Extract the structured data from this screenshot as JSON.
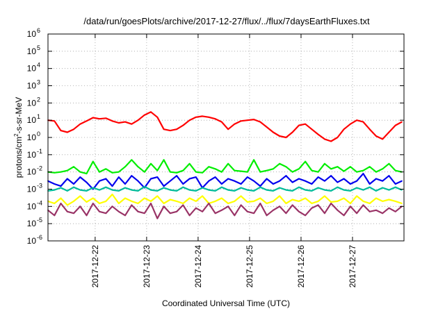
{
  "chart_data": {
    "type": "line",
    "title": "/data/run/goesPlots/archive/2017-12-27/flux/../flux/7daysEarthFluxes.txt",
    "xlabel": "Coordinated Universal Time (UTC)",
    "ylabel": {
      "base": "protons/cm",
      "sup": "2",
      "rest": "-s-sr-MeV"
    },
    "yscale": "log",
    "ylim": [
      1e-06,
      1000000.0
    ],
    "y_ticks": [
      {
        "exp": "-6"
      },
      {
        "exp": "-5"
      },
      {
        "exp": "-4"
      },
      {
        "exp": "-3"
      },
      {
        "exp": "-2"
      },
      {
        "exp": "-1"
      },
      {
        "exp": "0"
      },
      {
        "exp": "1"
      },
      {
        "exp": "2"
      },
      {
        "exp": "3"
      },
      {
        "exp": "4"
      },
      {
        "exp": "5"
      },
      {
        "exp": "6"
      }
    ],
    "xlim": [
      "2017-12-21T02:00",
      "2017-12-28T00:00"
    ],
    "x_ticks": [
      "2017-12-22",
      "2017-12-23",
      "2017-12-24",
      "2017-12-25",
      "2017-12-26",
      "2017-12-27"
    ],
    "x_tick_values": [
      "2017-12-22T00:00",
      "2017-12-23T00:00",
      "2017-12-24T00:00",
      "2017-12-25T00:00",
      "2017-12-26T00:00",
      "2017-12-27T00:00"
    ],
    "grid": true,
    "x": [
      "2017-12-21T02:00",
      "2017-12-21T05:00",
      "2017-12-21T08:00",
      "2017-12-21T11:00",
      "2017-12-21T14:00",
      "2017-12-21T17:00",
      "2017-12-21T20:00",
      "2017-12-21T23:00",
      "2017-12-22T02:00",
      "2017-12-22T05:00",
      "2017-12-22T08:00",
      "2017-12-22T11:00",
      "2017-12-22T14:00",
      "2017-12-22T17:00",
      "2017-12-22T20:00",
      "2017-12-22T23:00",
      "2017-12-23T02:00",
      "2017-12-23T05:00",
      "2017-12-23T08:00",
      "2017-12-23T11:00",
      "2017-12-23T14:00",
      "2017-12-23T17:00",
      "2017-12-23T20:00",
      "2017-12-23T23:00",
      "2017-12-24T02:00",
      "2017-12-24T05:00",
      "2017-12-24T08:00",
      "2017-12-24T11:00",
      "2017-12-24T14:00",
      "2017-12-24T17:00",
      "2017-12-24T20:00",
      "2017-12-24T23:00",
      "2017-12-25T02:00",
      "2017-12-25T05:00",
      "2017-12-25T08:00",
      "2017-12-25T11:00",
      "2017-12-25T14:00",
      "2017-12-25T17:00",
      "2017-12-25T20:00",
      "2017-12-25T23:00",
      "2017-12-26T02:00",
      "2017-12-26T05:00",
      "2017-12-26T08:00",
      "2017-12-26T11:00",
      "2017-12-26T14:00",
      "2017-12-26T17:00",
      "2017-12-26T20:00",
      "2017-12-26T23:00",
      "2017-12-27T02:00",
      "2017-12-27T05:00",
      "2017-12-27T08:00",
      "2017-12-27T11:00",
      "2017-12-27T14:00",
      "2017-12-27T17:00",
      "2017-12-27T20:00",
      "2017-12-27T23:00"
    ],
    "series": [
      {
        "color": "#ff0000",
        "values": [
          10,
          9,
          2.5,
          2,
          3,
          6,
          9,
          14,
          12,
          13,
          9,
          7,
          8,
          6,
          10,
          20,
          30,
          15,
          3,
          2.5,
          3,
          5,
          10,
          15,
          17,
          15,
          12,
          8,
          3,
          6,
          9,
          10,
          11,
          8,
          4,
          2,
          1.2,
          1,
          2,
          5,
          6,
          3,
          1.5,
          0.8,
          0.6,
          1,
          3,
          6,
          10,
          8,
          3,
          1.2,
          0.8,
          2,
          5,
          8
        ]
      },
      {
        "color": "#00ee00",
        "values": [
          0.01,
          0.009,
          0.01,
          0.012,
          0.02,
          0.01,
          0.008,
          0.04,
          0.01,
          0.015,
          0.009,
          0.01,
          0.02,
          0.05,
          0.02,
          0.01,
          0.03,
          0.012,
          0.05,
          0.01,
          0.009,
          0.012,
          0.03,
          0.01,
          0.009,
          0.02,
          0.015,
          0.01,
          0.03,
          0.012,
          0.011,
          0.01,
          0.05,
          0.01,
          0.012,
          0.015,
          0.03,
          0.02,
          0.01,
          0.015,
          0.04,
          0.012,
          0.01,
          0.03,
          0.015,
          0.02,
          0.011,
          0.02,
          0.01,
          0.012,
          0.02,
          0.01,
          0.015,
          0.03,
          0.012,
          0.01
        ]
      },
      {
        "color": "#0000ee",
        "values": [
          0.003,
          0.002,
          0.0015,
          0.004,
          0.002,
          0.005,
          0.0025,
          0.001,
          0.003,
          0.004,
          0.0015,
          0.005,
          0.002,
          0.006,
          0.003,
          0.0012,
          0.004,
          0.005,
          0.0015,
          0.003,
          0.006,
          0.002,
          0.004,
          0.005,
          0.0012,
          0.003,
          0.005,
          0.002,
          0.004,
          0.003,
          0.002,
          0.005,
          0.003,
          0.0015,
          0.004,
          0.002,
          0.003,
          0.006,
          0.0025,
          0.004,
          0.003,
          0.002,
          0.005,
          0.003,
          0.006,
          0.0025,
          0.004,
          0.002,
          0.003,
          0.008,
          0.002,
          0.004,
          0.003,
          0.006,
          0.002,
          0.003
        ]
      },
      {
        "color": "#00bb99",
        "values": [
          0.0008,
          0.0009,
          0.0012,
          0.0008,
          0.0013,
          0.0009,
          0.0008,
          0.0012,
          0.0009,
          0.0013,
          0.0009,
          0.0008,
          0.0012,
          0.0009,
          0.0008,
          0.0014,
          0.0009,
          0.0008,
          0.0012,
          0.0009,
          0.0008,
          0.0013,
          0.0009,
          0.0008,
          0.0012,
          0.0009,
          0.0008,
          0.0013,
          0.0009,
          0.0008,
          0.0012,
          0.0009,
          0.0008,
          0.0013,
          0.0009,
          0.0008,
          0.0012,
          0.0009,
          0.0008,
          0.0013,
          0.0009,
          0.0008,
          0.0012,
          0.0009,
          0.0008,
          0.0013,
          0.0009,
          0.0008,
          0.0012,
          0.0009,
          0.0013,
          0.0008,
          0.0012,
          0.0009,
          0.0013,
          0.0009
        ]
      },
      {
        "color": "#ffff00",
        "values": [
          0.0002,
          0.00015,
          0.0003,
          0.00012,
          0.0002,
          0.0004,
          0.00018,
          0.0003,
          0.00015,
          0.0002,
          0.0005,
          0.00015,
          0.0003,
          0.0002,
          0.00015,
          0.0003,
          0.0002,
          0.0004,
          0.00015,
          0.00025,
          0.0002,
          0.00015,
          0.0003,
          0.0002,
          0.0004,
          0.00015,
          0.0002,
          0.0003,
          0.00015,
          0.0002,
          0.0004,
          0.00018,
          0.0002,
          0.0003,
          0.00015,
          0.0002,
          0.0004,
          0.00015,
          0.00025,
          0.0002,
          0.0003,
          0.00015,
          0.0002,
          0.0004,
          0.00018,
          0.0002,
          0.0003,
          0.00015,
          0.0004,
          0.0002,
          0.00015,
          0.0003,
          0.0002,
          0.00025,
          0.0002,
          0.00015
        ]
      },
      {
        "color": "#993366",
        "values": [
          6e-05,
          3e-05,
          0.00015,
          5e-05,
          4e-05,
          0.0001,
          3e-05,
          0.00015,
          5e-05,
          4e-05,
          0.0001,
          5e-05,
          3e-05,
          0.00012,
          5e-05,
          4e-05,
          0.00015,
          2e-05,
          0.0001,
          4e-05,
          5e-05,
          0.00012,
          3e-05,
          8e-05,
          5e-05,
          0.00015,
          4e-05,
          6e-05,
          0.0001,
          3e-05,
          0.00012,
          5e-05,
          4e-05,
          0.00015,
          3e-05,
          6e-05,
          0.0001,
          4e-05,
          0.00012,
          5e-05,
          3e-05,
          8e-05,
          0.00012,
          4e-05,
          0.00015,
          6e-05,
          3e-05,
          0.0001,
          4e-05,
          0.00012,
          5e-05,
          6e-05,
          4e-05,
          8e-05,
          5e-05,
          0.0001
        ]
      }
    ]
  }
}
